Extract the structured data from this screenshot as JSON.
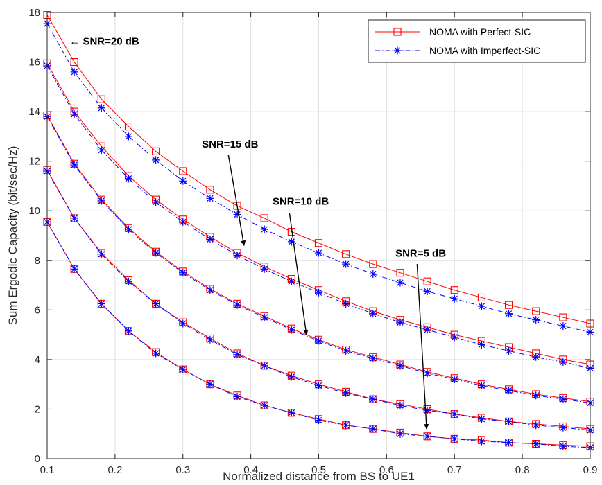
{
  "chart_data": {
    "type": "line",
    "title": "",
    "xlabel": "Normalized distance from BS to UE1",
    "ylabel": "Sum Ergodic Capacity (bit/sec/Hz)",
    "xlim": [
      0.1,
      0.9
    ],
    "ylim": [
      0,
      18
    ],
    "xticks": [
      0.1,
      0.2,
      0.3,
      0.4,
      0.5,
      0.6,
      0.7,
      0.8,
      0.9
    ],
    "yticks": [
      0,
      2,
      4,
      6,
      8,
      10,
      12,
      14,
      16,
      18
    ],
    "grid": true,
    "legend_position": "top-right",
    "legend": [
      "NOMA with Perfect-SIC",
      "NOMA with Imperfect-SIC"
    ],
    "x": [
      0.1,
      0.14,
      0.18,
      0.22,
      0.26,
      0.3,
      0.34,
      0.38,
      0.42,
      0.46,
      0.5,
      0.54,
      0.58,
      0.62,
      0.66,
      0.7,
      0.74,
      0.78,
      0.82,
      0.86,
      0.9
    ],
    "groups": [
      {
        "snr_label": "SNR=20 dB",
        "perfect": [
          17.9,
          16.0,
          14.5,
          13.4,
          12.4,
          11.6,
          10.85,
          10.2,
          9.7,
          9.15,
          8.7,
          8.25,
          7.85,
          7.5,
          7.15,
          6.8,
          6.5,
          6.2,
          5.95,
          5.7,
          5.45
        ],
        "imperfect": [
          17.55,
          15.6,
          14.15,
          13.0,
          12.05,
          11.2,
          10.5,
          9.85,
          9.25,
          8.75,
          8.3,
          7.85,
          7.45,
          7.1,
          6.75,
          6.45,
          6.15,
          5.85,
          5.6,
          5.35,
          5.1
        ]
      },
      {
        "snr_label": "SNR=15 dB",
        "perfect": [
          15.95,
          14.0,
          12.6,
          11.4,
          10.45,
          9.65,
          8.95,
          8.3,
          7.75,
          7.25,
          6.8,
          6.35,
          5.95,
          5.6,
          5.3,
          5.0,
          4.75,
          4.5,
          4.25,
          4.0,
          3.8
        ],
        "imperfect": [
          15.85,
          13.9,
          12.45,
          11.3,
          10.35,
          9.55,
          8.85,
          8.2,
          7.65,
          7.15,
          6.7,
          6.25,
          5.85,
          5.5,
          5.2,
          4.9,
          4.6,
          4.35,
          4.1,
          3.9,
          3.65
        ]
      },
      {
        "snr_label": "SNR=10 dB",
        "perfect": [
          13.85,
          11.9,
          10.45,
          9.3,
          8.35,
          7.55,
          6.85,
          6.25,
          5.75,
          5.25,
          4.8,
          4.4,
          4.1,
          3.8,
          3.5,
          3.25,
          3.0,
          2.8,
          2.6,
          2.45,
          2.3
        ],
        "imperfect": [
          13.8,
          11.85,
          10.4,
          9.25,
          8.3,
          7.5,
          6.8,
          6.2,
          5.7,
          5.2,
          4.75,
          4.35,
          4.05,
          3.75,
          3.45,
          3.2,
          2.95,
          2.75,
          2.55,
          2.4,
          2.25
        ]
      },
      {
        "snr_label": "SNR=5 dB",
        "perfect": [
          11.65,
          9.7,
          8.3,
          7.2,
          6.25,
          5.5,
          4.85,
          4.25,
          3.75,
          3.35,
          3.0,
          2.7,
          2.4,
          2.2,
          2.0,
          1.8,
          1.65,
          1.5,
          1.4,
          1.3,
          1.2
        ],
        "imperfect": [
          11.6,
          9.7,
          8.25,
          7.15,
          6.25,
          5.45,
          4.8,
          4.2,
          3.75,
          3.3,
          2.95,
          2.65,
          2.4,
          2.15,
          1.95,
          1.8,
          1.6,
          1.5,
          1.35,
          1.25,
          1.15
        ]
      },
      {
        "snr_label": "",
        "perfect": [
          9.55,
          7.65,
          6.25,
          5.15,
          4.3,
          3.6,
          3.0,
          2.55,
          2.15,
          1.85,
          1.6,
          1.35,
          1.2,
          1.05,
          0.9,
          0.8,
          0.75,
          0.65,
          0.6,
          0.55,
          0.5
        ],
        "imperfect": [
          9.55,
          7.65,
          6.25,
          5.15,
          4.25,
          3.6,
          3.0,
          2.5,
          2.15,
          1.85,
          1.55,
          1.35,
          1.2,
          1.0,
          0.9,
          0.8,
          0.7,
          0.65,
          0.6,
          0.5,
          0.45
        ]
      }
    ],
    "annotations": [
      {
        "text": "← SNR=20 dB",
        "tx": 0.133,
        "ty": 16.7
      },
      {
        "text": "SNR=15 dB",
        "tx": 0.328,
        "ty": 12.55,
        "ax1": 0.367,
        "ay1": 12.25,
        "ax2": 0.39,
        "ay2": 8.6
      },
      {
        "text": "SNR=10 dB",
        "tx": 0.432,
        "ty": 10.25,
        "ax1": 0.457,
        "ay1": 9.9,
        "ax2": 0.482,
        "ay2": 5.0
      },
      {
        "text": "SNR=5 dB",
        "tx": 0.613,
        "ty": 8.15,
        "ax1": 0.645,
        "ay1": 7.85,
        "ax2": 0.659,
        "ay2": 1.2
      }
    ],
    "colors": {
      "perfect": "#ff0000",
      "imperfect": "#0000ff",
      "grid": "#dfdfdf",
      "axis": "#262626"
    }
  }
}
